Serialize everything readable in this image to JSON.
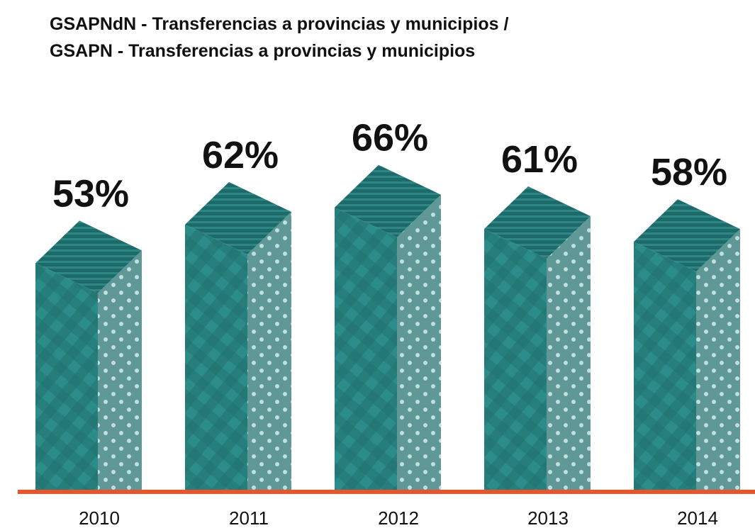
{
  "chart_data": {
    "type": "bar3d",
    "title": [
      "GSAPNdN - Transferencias a provincias y municipios  /",
      "GSAPN - Transferencias a provincias y municipios"
    ],
    "categories": [
      "2010",
      "2011",
      "2012",
      "2013",
      "2014"
    ],
    "values": [
      53,
      62,
      66,
      61,
      58
    ],
    "value_labels": [
      "53%",
      "62%",
      "66%",
      "61%",
      "58%"
    ],
    "color": "#2a8a8a"
  }
}
